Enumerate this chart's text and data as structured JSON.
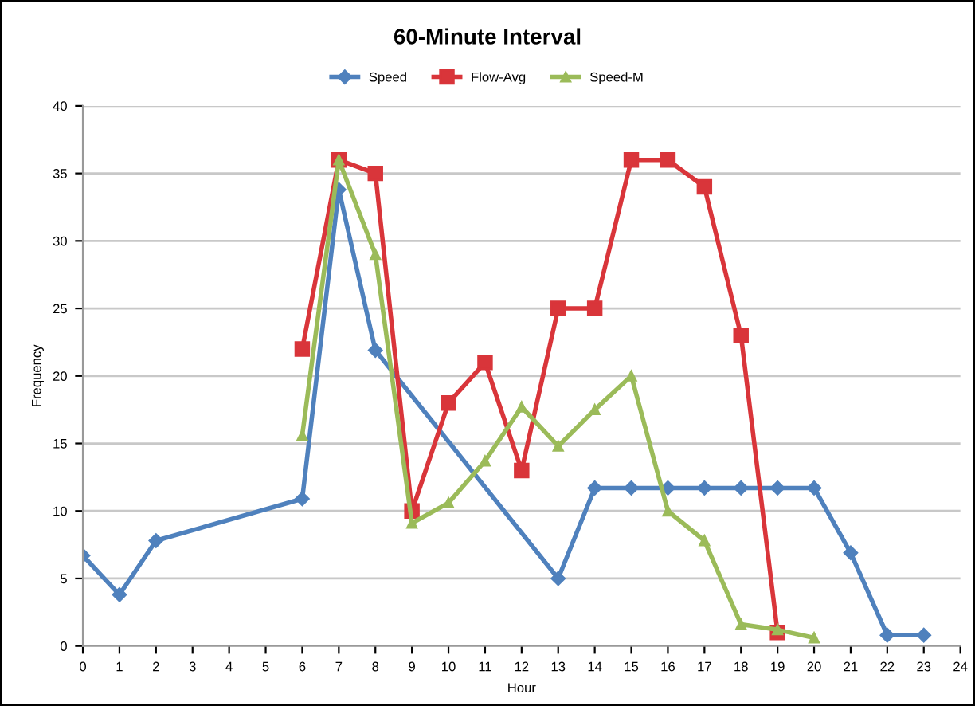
{
  "chart_data": {
    "type": "line",
    "title": "60-Minute Interval",
    "xlabel": "Hour",
    "ylabel": "Frequency",
    "xlim": [
      0,
      24
    ],
    "xticks": [
      0,
      1,
      2,
      3,
      4,
      5,
      6,
      7,
      8,
      9,
      10,
      11,
      12,
      13,
      14,
      15,
      16,
      17,
      18,
      19,
      20,
      21,
      22,
      23,
      24
    ],
    "ylim": [
      0,
      40
    ],
    "yticks": [
      0,
      5,
      10,
      15,
      20,
      25,
      30,
      35,
      40
    ],
    "grid": "y",
    "legend": "top",
    "series": [
      {
        "name": "Speed",
        "color": "#4f81bd",
        "marker": "diamond",
        "x": [
          0,
          1,
          2,
          6,
          7,
          8,
          13,
          14,
          15,
          16,
          17,
          18,
          19,
          20,
          21,
          22,
          23
        ],
        "values": [
          6.7,
          3.8,
          7.8,
          10.9,
          33.8,
          21.9,
          5,
          11.7,
          11.7,
          11.7,
          11.7,
          11.7,
          11.7,
          11.7,
          6.9,
          0.8,
          0.8
        ]
      },
      {
        "name": "Flow-Avg",
        "color": "#d9353a",
        "marker": "square",
        "x": [
          6,
          7,
          8,
          9,
          10,
          11,
          12,
          13,
          14,
          15,
          16,
          17,
          18,
          19
        ],
        "values": [
          22,
          36,
          35,
          10,
          18,
          21,
          13,
          25,
          25,
          36,
          36,
          34,
          23,
          1
        ]
      },
      {
        "name": "Speed-M",
        "color": "#9bbb59",
        "marker": "triangle",
        "x": [
          6,
          7,
          8,
          9,
          10,
          11,
          12,
          13,
          14,
          15,
          16,
          17,
          18,
          19,
          20
        ],
        "values": [
          15.6,
          36,
          29,
          9.1,
          10.6,
          13.7,
          17.7,
          14.8,
          17.5,
          20,
          10,
          7.8,
          1.6,
          1.2,
          0.6
        ]
      }
    ]
  }
}
